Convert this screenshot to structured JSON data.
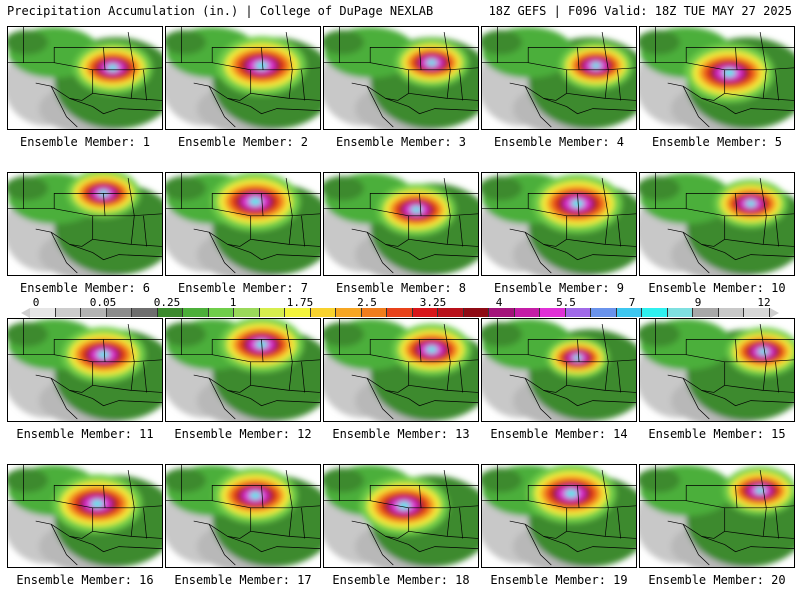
{
  "header": {
    "title": "Precipitation Accumulation (in.) | College of DuPage NEXLAB",
    "run_info": "18Z GEFS | F096 Valid: 18Z TUE MAY 27 2025"
  },
  "panels": [
    {
      "label": "Ensemble Member: 1",
      "max_center": [
        0.68,
        0.4
      ],
      "intensity": 0.75
    },
    {
      "label": "Ensemble Member: 2",
      "max_center": [
        0.62,
        0.38
      ],
      "intensity": 0.85
    },
    {
      "label": "Ensemble Member: 3",
      "max_center": [
        0.7,
        0.35
      ],
      "intensity": 0.7
    },
    {
      "label": "Ensemble Member: 4",
      "max_center": [
        0.74,
        0.38
      ],
      "intensity": 0.7
    },
    {
      "label": "Ensemble Member: 5",
      "max_center": [
        0.58,
        0.45
      ],
      "intensity": 0.85
    },
    {
      "label": "Ensemble Member: 6",
      "max_center": [
        0.62,
        0.2
      ],
      "intensity": 0.7
    },
    {
      "label": "Ensemble Member: 7",
      "max_center": [
        0.58,
        0.28
      ],
      "intensity": 0.85
    },
    {
      "label": "Ensemble Member: 8",
      "max_center": [
        0.6,
        0.36
      ],
      "intensity": 0.75
    },
    {
      "label": "Ensemble Member: 9",
      "max_center": [
        0.62,
        0.3
      ],
      "intensity": 0.85
    },
    {
      "label": "Ensemble Member: 10",
      "max_center": [
        0.72,
        0.3
      ],
      "intensity": 0.7
    },
    {
      "label": "Ensemble Member: 11",
      "max_center": [
        0.62,
        0.35
      ],
      "intensity": 0.8
    },
    {
      "label": "Ensemble Member: 12",
      "max_center": [
        0.62,
        0.25
      ],
      "intensity": 0.8
    },
    {
      "label": "Ensemble Member: 13",
      "max_center": [
        0.7,
        0.3
      ],
      "intensity": 0.75
    },
    {
      "label": "Ensemble Member: 14",
      "max_center": [
        0.62,
        0.38
      ],
      "intensity": 0.6
    },
    {
      "label": "Ensemble Member: 15",
      "max_center": [
        0.8,
        0.32
      ],
      "intensity": 0.7
    },
    {
      "label": "Ensemble Member: 16",
      "max_center": [
        0.58,
        0.38
      ],
      "intensity": 0.85
    },
    {
      "label": "Ensemble Member: 17",
      "max_center": [
        0.58,
        0.3
      ],
      "intensity": 0.8
    },
    {
      "label": "Ensemble Member: 18",
      "max_center": [
        0.52,
        0.4
      ],
      "intensity": 0.85
    },
    {
      "label": "Ensemble Member: 19",
      "max_center": [
        0.58,
        0.28
      ],
      "intensity": 0.85
    },
    {
      "label": "Ensemble Member: 20",
      "max_center": [
        0.78,
        0.25
      ],
      "intensity": 0.7
    }
  ],
  "colorbar": {
    "tick_labels": [
      "0",
      "0.05",
      "0.25",
      "1",
      "1.75",
      "2.5",
      "3.25",
      "4",
      "5.5",
      "7",
      "9",
      "12"
    ],
    "colors": [
      "#e6e6e6",
      "#cccccc",
      "#b3b3b3",
      "#8c8c8c",
      "#6e6e6e",
      "#3c8a2e",
      "#4caf3a",
      "#6fce4a",
      "#9ad95a",
      "#d6ee4e",
      "#f4f43c",
      "#f8d22e",
      "#f6a623",
      "#f07d1c",
      "#e8421a",
      "#d8151a",
      "#b8101a",
      "#8e0a14",
      "#a3127a",
      "#c41da6",
      "#e030d6",
      "#a06ae8",
      "#6a93ec",
      "#3ec7f0",
      "#2ff0ef",
      "#7fe0e0",
      "#a8a8a8",
      "#c8c8c8",
      "#d8d8d8"
    ]
  }
}
